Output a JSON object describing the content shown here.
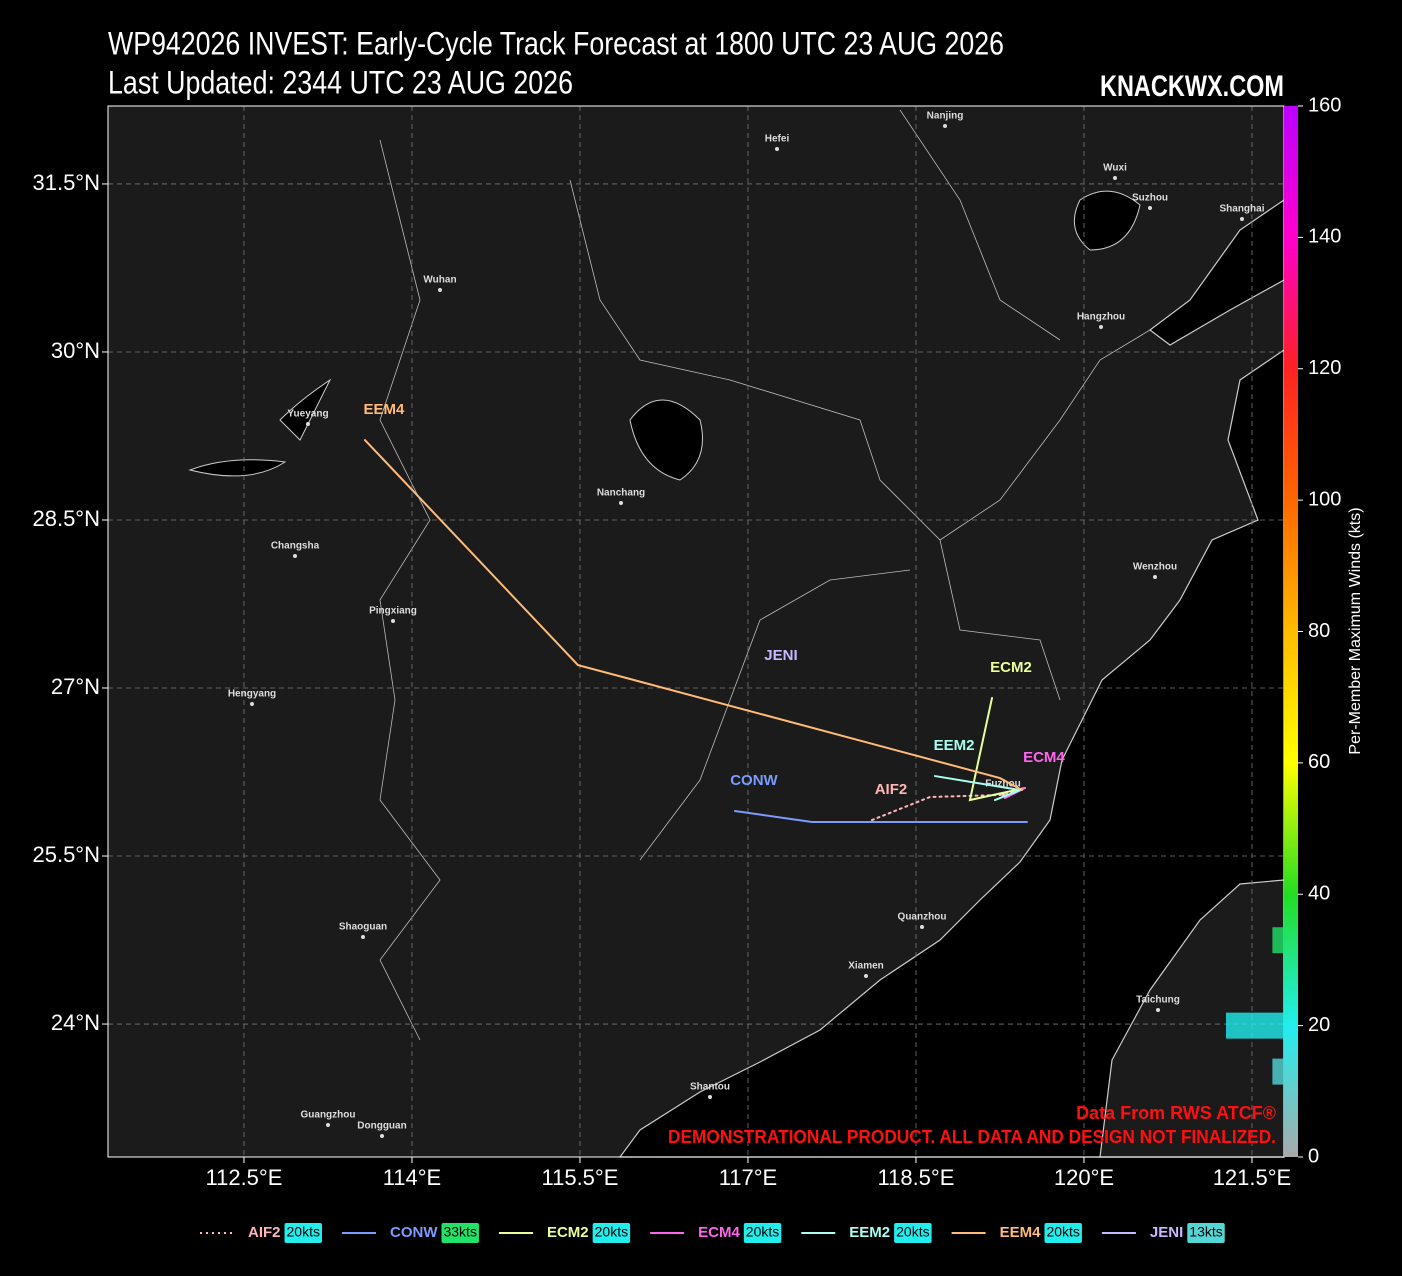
{
  "chart_data": {
    "type": "track-map",
    "title": "WP942026 INVEST: Early-Cycle Track Forecast at 1800 UTC 23 AUG 2026",
    "subtitle": "Last Updated: 2344 UTC 23 AUG 2026",
    "brand": "KNACKWX.COM",
    "annotations": [
      "Data From RWS ATCF®",
      "DEMONSTRATIONAL PRODUCT. ALL DATA AND DESIGN NOT FINALIZED."
    ],
    "xlim": [
      111.286,
      121.786
    ],
    "ylim": [
      22.813,
      32.196
    ],
    "xticks": [
      {
        "value": 112.5,
        "label": "112.5°E"
      },
      {
        "value": 114,
        "label": "114°E"
      },
      {
        "value": 115.5,
        "label": "115.5°E"
      },
      {
        "value": 117,
        "label": "117°E"
      },
      {
        "value": 118.5,
        "label": "118.5°E"
      },
      {
        "value": 120,
        "label": "120°E"
      },
      {
        "value": 121.5,
        "label": "121.5°E"
      }
    ],
    "yticks": [
      {
        "value": 24,
        "label": "24°N"
      },
      {
        "value": 25.5,
        "label": "25.5°N"
      },
      {
        "value": 27,
        "label": "27°N"
      },
      {
        "value": 28.5,
        "label": "28.5°N"
      },
      {
        "value": 30,
        "label": "30°N"
      },
      {
        "value": 31.5,
        "label": "31.5°N"
      }
    ],
    "grid": true,
    "cities": [
      "Nanjing",
      "Hefei",
      "Wuxi",
      "Suzhou",
      "Shanghai",
      "Hangzhou",
      "Wuhan",
      "Yueyang",
      "Nanchang",
      "Changsha",
      "Pingxiang",
      "Hengyang",
      "Wenzhou",
      "Fuzhou",
      "Quanzhou",
      "Xiamen",
      "Taichung",
      "Shaoguan",
      "Shantou",
      "Guangzhou",
      "Dongguan"
    ],
    "colorbar": {
      "label": "Per-Member Maximum Winds (kts)",
      "lim": [
        0,
        160
      ],
      "ticks": [
        0,
        20,
        40,
        60,
        80,
        100,
        120,
        140,
        160
      ]
    },
    "series": [
      {
        "name": "AIF2",
        "color": "#ffb6b6",
        "line_style": "dotted",
        "max_wind": 20,
        "wind_label": "20kts",
        "x": [
          118.107,
          118.625,
          119.25,
          119.429
        ],
        "y": [
          25.821,
          26.027,
          26.045,
          26.089
        ]
      },
      {
        "name": "CONW",
        "color": "#7b9bff",
        "line_style": "solid",
        "max_wind": 33,
        "wind_label": "33kts",
        "x": [
          116.884,
          117.571,
          119.491
        ],
        "y": [
          25.902,
          25.804,
          25.804
        ]
      },
      {
        "name": "ECM2",
        "color": "#e8ff9c",
        "line_style": "solid",
        "max_wind": 20,
        "wind_label": "20kts",
        "x": [
          119.179,
          118.982,
          119.473
        ],
        "y": [
          26.911,
          26.0,
          26.107
        ]
      },
      {
        "name": "ECM4",
        "color": "#ff66ee",
        "line_style": "solid",
        "max_wind": 20,
        "wind_label": "20kts",
        "x": [
          119.473,
          119.295
        ],
        "y": [
          26.107,
          26.018
        ]
      },
      {
        "name": "EEM2",
        "color": "#a8fff0",
        "line_style": "solid",
        "max_wind": 20,
        "wind_label": "20kts",
        "x": [
          118.67,
          119.429,
          119.205
        ],
        "y": [
          26.214,
          26.089,
          26.0
        ]
      },
      {
        "name": "EEM4",
        "color": "#ffbb77",
        "line_style": "solid",
        "max_wind": 20,
        "wind_label": "20kts",
        "x": [
          113.58,
          115.482,
          119.25,
          119.446
        ],
        "y": [
          29.214,
          27.205,
          26.196,
          26.089
        ]
      },
      {
        "name": "JENI",
        "color": "#c8b8ff",
        "line_style": "solid",
        "max_wind": 13,
        "wind_label": "13kts",
        "x": [
          117.125
        ],
        "y": [
          27.018
        ]
      }
    ]
  }
}
